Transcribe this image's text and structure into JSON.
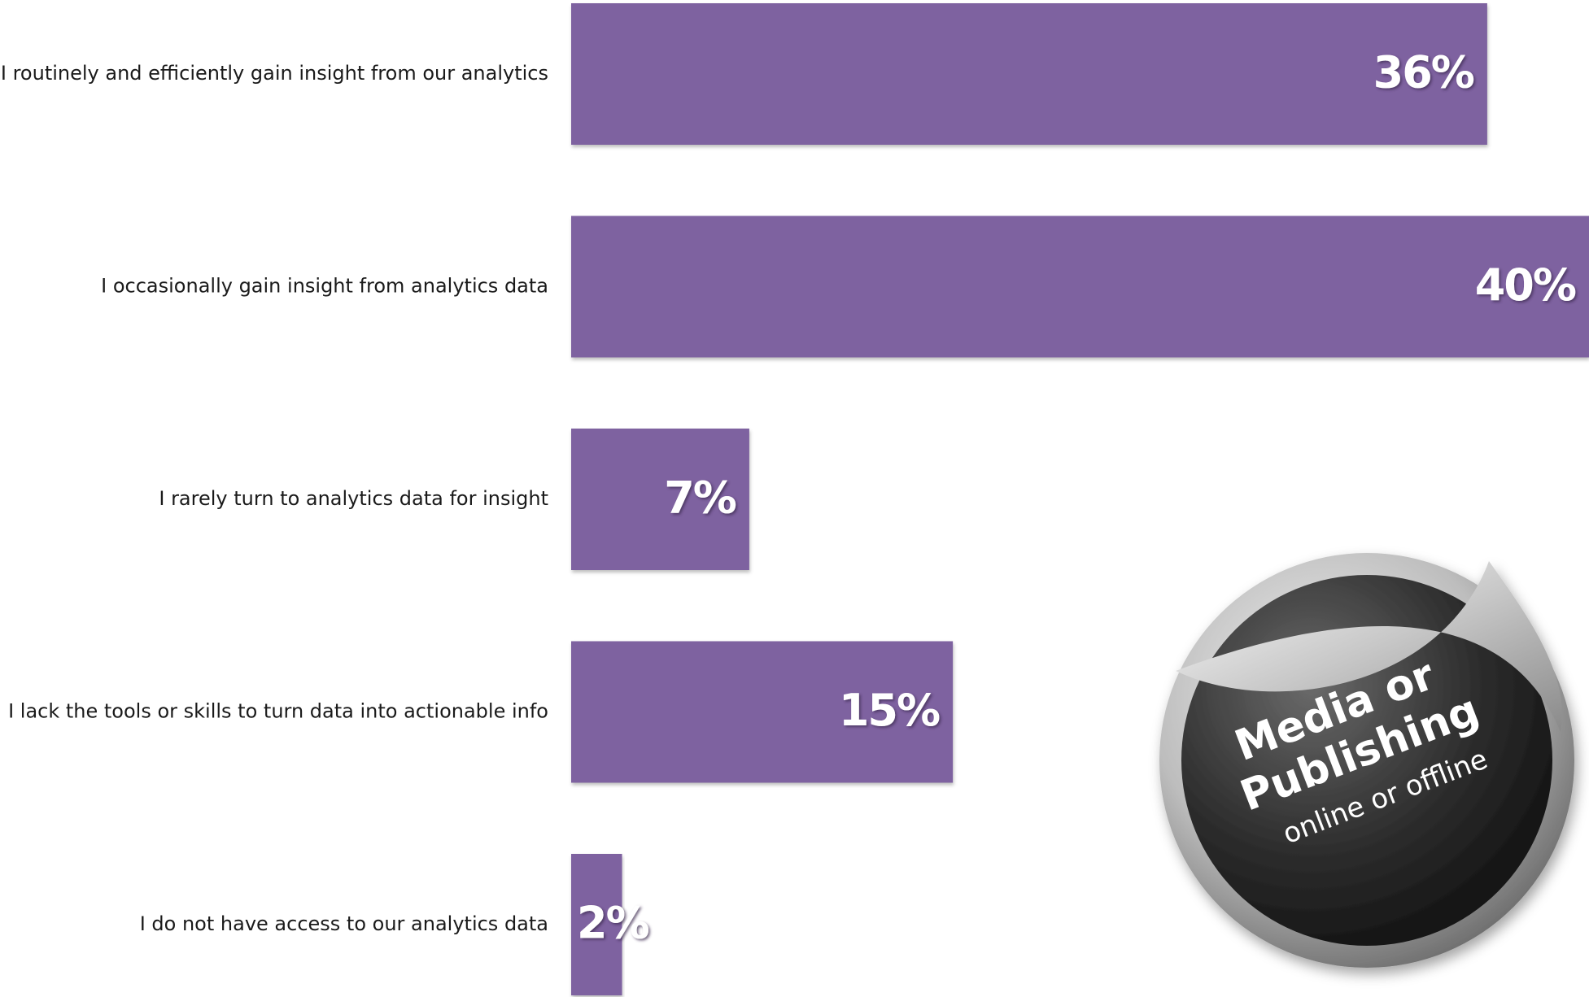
{
  "chart_data": {
    "type": "hbar",
    "categories": [
      "I routinely and efficiently gain insight from our analytics",
      "I occasionally gain insight from analytics data",
      "I rarely turn to analytics data for insight",
      "I lack the tools or skills to turn data into actionable info",
      "I do not have access to our analytics data"
    ],
    "values": [
      36,
      40,
      7,
      15,
      2
    ],
    "value_labels": [
      "36%",
      "40%",
      "7%",
      "15%",
      "2%"
    ],
    "color": "#7e62a0",
    "xlim": [
      0,
      40
    ],
    "annotations": [
      "Media or",
      "Publishing",
      "online or offline"
    ]
  }
}
